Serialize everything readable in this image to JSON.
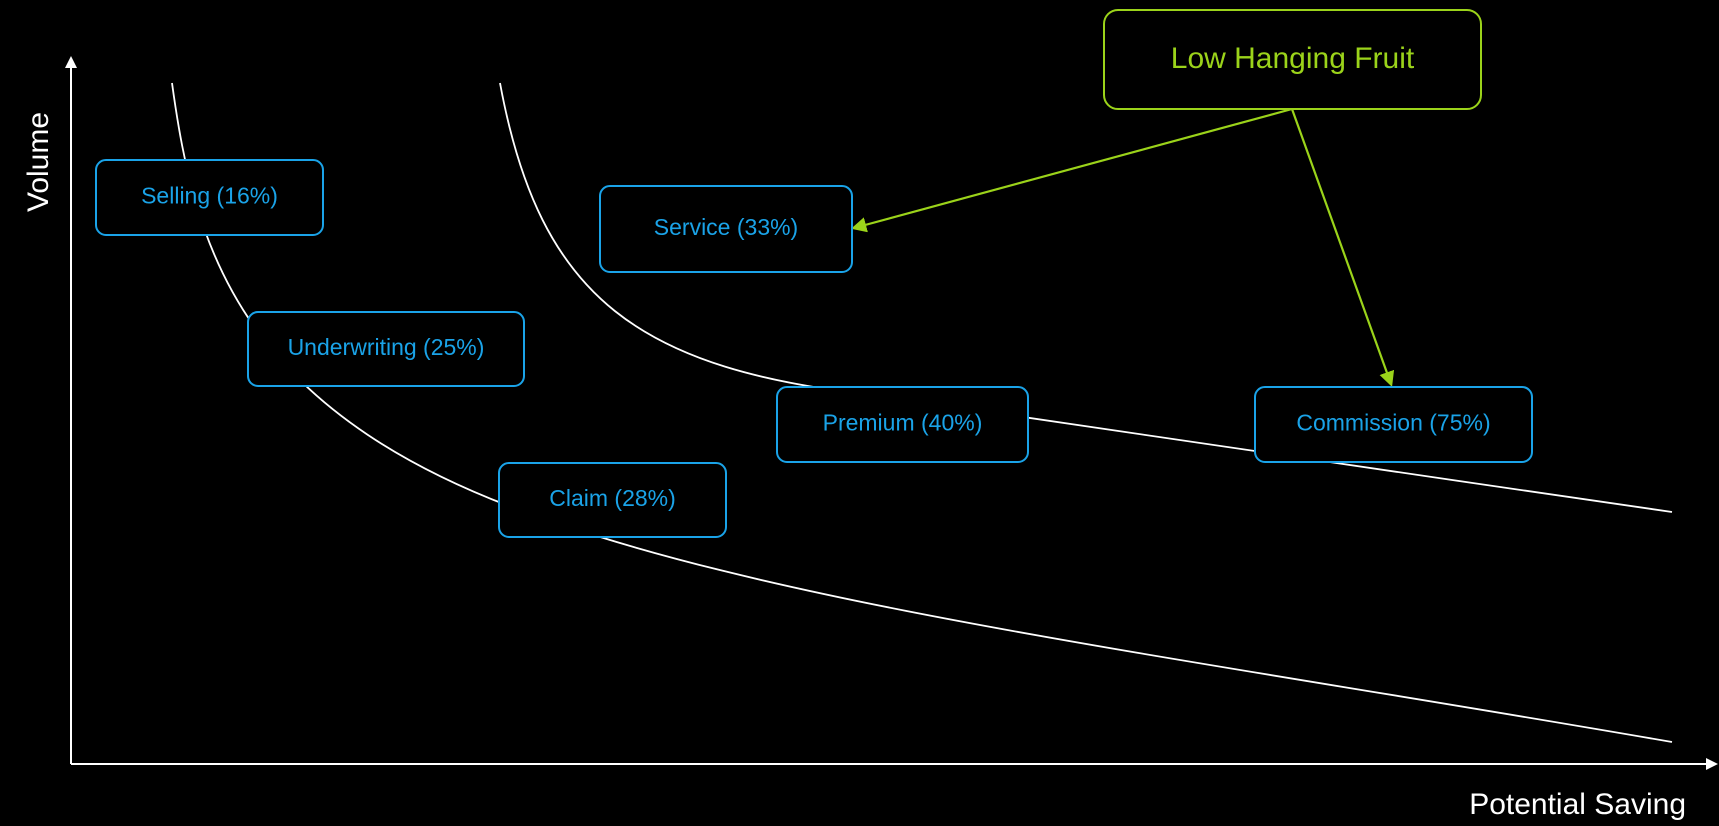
{
  "axes": {
    "x_label": "Potential Saving",
    "y_label": "Volume"
  },
  "colors": {
    "background": "#000000",
    "axis": "#ffffff",
    "curve": "#ffffff",
    "box": "#1aa3e8",
    "callout": "#9bd31a"
  },
  "boxes": [
    {
      "id": "selling",
      "label": "Selling (16%)"
    },
    {
      "id": "underwriting",
      "label": "Underwriting (25%)"
    },
    {
      "id": "claim",
      "label": "Claim (28%)"
    },
    {
      "id": "service",
      "label": "Service (33%)"
    },
    {
      "id": "premium",
      "label": "Premium (40%)"
    },
    {
      "id": "commission",
      "label": "Commission (75%)"
    }
  ],
  "callout": {
    "label": "Low Hanging Fruit",
    "points_to": [
      "Service (33%)",
      "Commission (75%)"
    ]
  }
}
